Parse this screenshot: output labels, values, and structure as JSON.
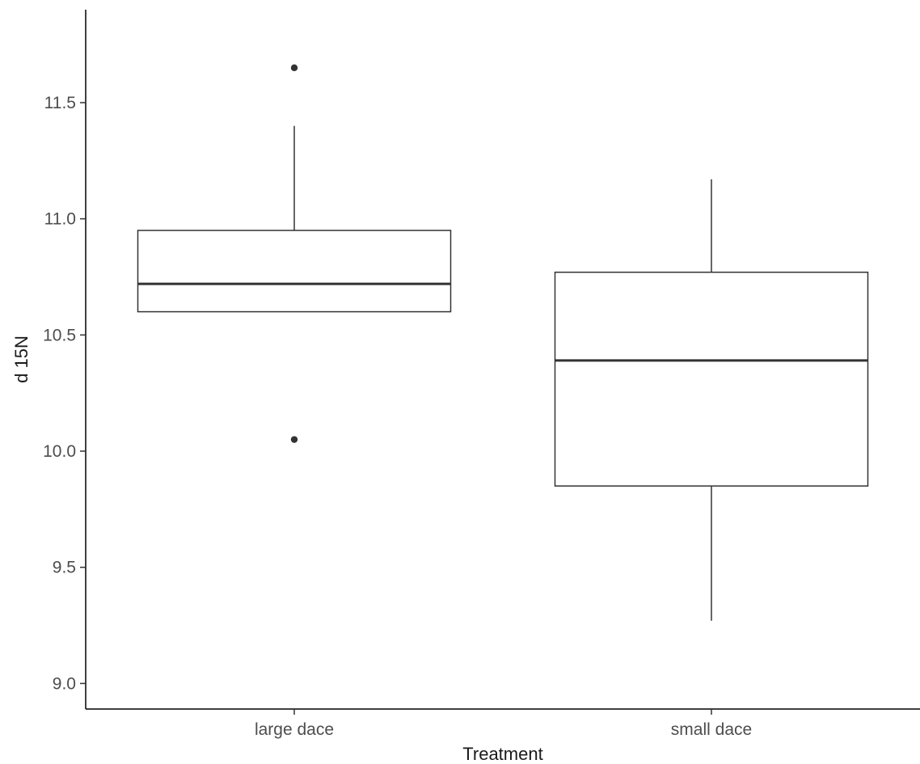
{
  "chart_data": {
    "type": "boxplot",
    "title": "",
    "xlabel": "Treatment",
    "ylabel": "d 15N",
    "ylim": [
      8.89,
      11.9
    ],
    "yticks": [
      9.0,
      9.5,
      10.0,
      10.5,
      11.0,
      11.5
    ],
    "ytick_labels": [
      "9.0",
      "9.5",
      "10.0",
      "10.5",
      "11.0",
      "11.5"
    ],
    "grid": false,
    "legend": "none",
    "line_color": "#333333",
    "categories": [
      "large dace",
      "small dace"
    ],
    "boxes": [
      {
        "category": "large dace",
        "whisker_low": 10.6,
        "q1": 10.6,
        "median": 10.72,
        "q3": 10.95,
        "whisker_high": 11.4,
        "outliers": [
          11.65,
          10.05
        ]
      },
      {
        "category": "small dace",
        "whisker_low": 9.27,
        "q1": 9.85,
        "median": 10.39,
        "q3": 10.77,
        "whisker_high": 11.17,
        "outliers": []
      }
    ]
  }
}
